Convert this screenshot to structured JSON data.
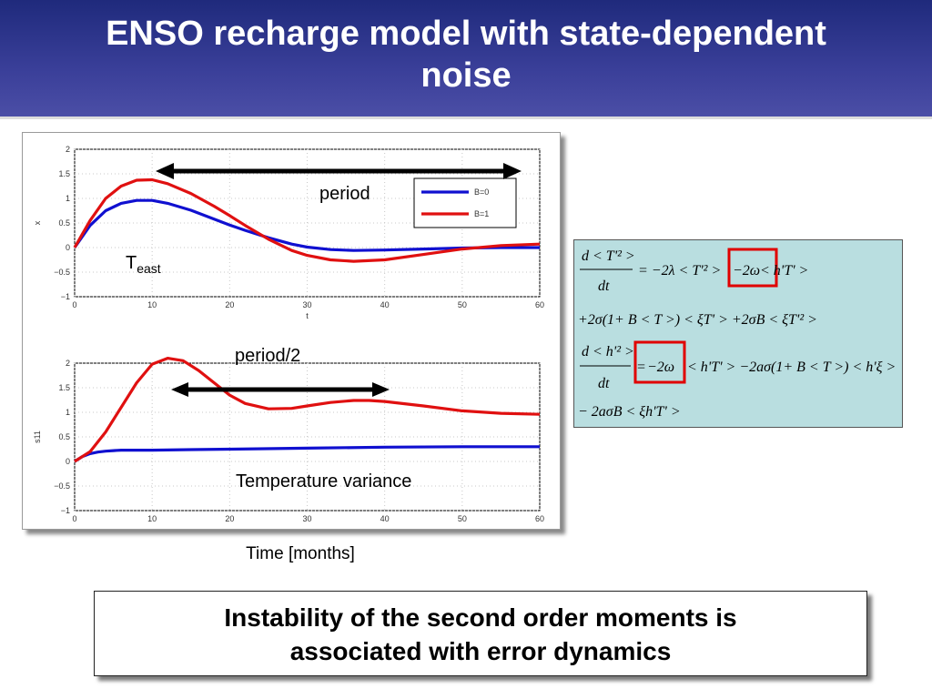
{
  "title": "ENSO recharge model with state-dependent\nnoise",
  "bottom_text": "Instability of the second order moments is\nassociated with error dynamics",
  "time_label": "Time [months]",
  "colors": {
    "b0": "#1010d0",
    "b1": "#e01010",
    "box_red": "#e00000",
    "equation_bg": "#b9dee0",
    "title_bg": "#2a3187"
  },
  "annotations": {
    "period": "period",
    "teast_main": "T",
    "teast_sub": "east",
    "period_half": "period/2",
    "temp_variance": "Temperature variance"
  },
  "equations": {
    "line1_num": "d < T'² >",
    "line1_den": "dt",
    "line1_rhs_a": "= −2λ < T'² >",
    "line1_rhs_b": "−2ω",
    "line1_rhs_c": "< h'T' >",
    "line2": "+2σ(1+ B < T >) < ξT' > +2σB < ξT'² >",
    "line3_num": "d < h'² >",
    "line3_den": "dt",
    "line3_rhs_a": "=",
    "line3_rhs_b": "−2ω",
    "line3_rhs_c": "< h'T' > −2aσ(1+ B < T >) < h'ξ >",
    "line4": "− 2aσB < ξh'T' >"
  },
  "chart_data": [
    {
      "type": "line",
      "title": "",
      "xlabel": "t",
      "ylabel": "x",
      "xlim": [
        0,
        60
      ],
      "ylim": [
        -1,
        2
      ],
      "xticks": [
        0,
        10,
        20,
        30,
        40,
        50,
        60
      ],
      "yticks": [
        -1,
        -0.5,
        0,
        0.5,
        1,
        1.5,
        2
      ],
      "grid": true,
      "legend_position": "top-right",
      "series": [
        {
          "name": "B=0",
          "color": "#1010d0",
          "x": [
            0,
            2,
            4,
            6,
            8,
            10,
            12,
            15,
            18,
            20,
            22,
            25,
            28,
            30,
            33,
            36,
            40,
            45,
            50,
            55,
            60
          ],
          "y": [
            0,
            0.45,
            0.75,
            0.9,
            0.96,
            0.96,
            0.9,
            0.76,
            0.58,
            0.46,
            0.35,
            0.2,
            0.07,
            0.01,
            -0.04,
            -0.06,
            -0.05,
            -0.03,
            -0.01,
            0.0,
            0.0
          ]
        },
        {
          "name": "B=1",
          "color": "#e01010",
          "x": [
            0,
            2,
            4,
            6,
            8,
            10,
            12,
            15,
            18,
            20,
            22,
            25,
            28,
            30,
            33,
            36,
            40,
            45,
            50,
            55,
            60
          ],
          "y": [
            0,
            0.55,
            1.0,
            1.25,
            1.37,
            1.38,
            1.3,
            1.1,
            0.84,
            0.65,
            0.45,
            0.17,
            -0.06,
            -0.16,
            -0.25,
            -0.28,
            -0.25,
            -0.14,
            -0.03,
            0.04,
            0.07
          ]
        }
      ]
    },
    {
      "type": "line",
      "title": "",
      "xlabel": "",
      "ylabel": "s11",
      "xlim": [
        0,
        60
      ],
      "ylim": [
        -1,
        2
      ],
      "xticks": [
        0,
        10,
        20,
        30,
        40,
        50,
        60
      ],
      "yticks": [
        -1,
        -0.5,
        0,
        0.5,
        1,
        1.5,
        2
      ],
      "grid": true,
      "series": [
        {
          "name": "",
          "color": "#1010d0",
          "x": [
            0,
            1,
            2,
            3,
            4,
            5,
            6,
            8,
            10,
            15,
            20,
            30,
            40,
            50,
            60
          ],
          "y": [
            0,
            0.1,
            0.16,
            0.19,
            0.21,
            0.22,
            0.23,
            0.23,
            0.23,
            0.24,
            0.25,
            0.27,
            0.29,
            0.3,
            0.3
          ]
        },
        {
          "name": "",
          "color": "#e01010",
          "x": [
            0,
            2,
            4,
            6,
            8,
            10,
            12,
            14,
            16,
            18,
            20,
            22,
            25,
            28,
            30,
            33,
            36,
            38,
            40,
            45,
            50,
            55,
            60
          ],
          "y": [
            0,
            0.2,
            0.6,
            1.1,
            1.6,
            1.98,
            2.1,
            2.05,
            1.85,
            1.6,
            1.35,
            1.18,
            1.07,
            1.08,
            1.13,
            1.2,
            1.24,
            1.24,
            1.22,
            1.13,
            1.03,
            0.98,
            0.96
          ]
        }
      ]
    }
  ]
}
